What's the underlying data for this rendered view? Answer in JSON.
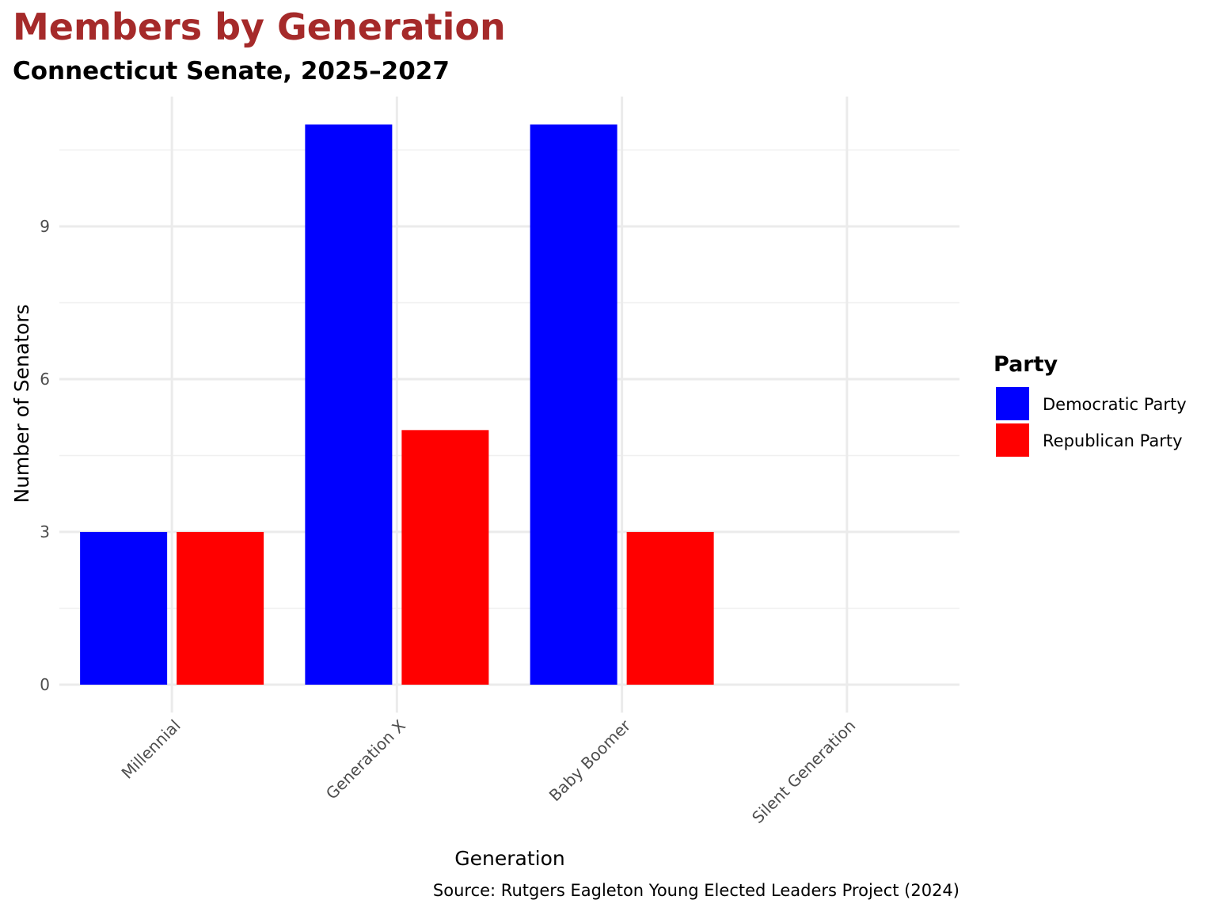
{
  "chart_data": {
    "type": "bar",
    "title": "Members by Generation",
    "subtitle": "Connecticut Senate, 2025–2027",
    "xlabel": "Generation",
    "ylabel": "Number of Senators",
    "caption": "Source: Rutgers Eagleton Young Elected Leaders Project (2024)",
    "categories": [
      "Millennial",
      "Generation X",
      "Baby Boomer",
      "Silent Generation"
    ],
    "series": [
      {
        "name": "Democratic Party",
        "color": "#0000FF",
        "values": [
          3,
          11,
          11,
          0
        ]
      },
      {
        "name": "Republican Party",
        "color": "#FF0000",
        "values": [
          3,
          5,
          3,
          0
        ]
      }
    ],
    "yticks": [
      0,
      3,
      6,
      9
    ],
    "ylim": [
      0,
      11.55
    ],
    "grid": true,
    "legend": {
      "title": "Party",
      "position": "right"
    },
    "title_color": "#A52A2A"
  }
}
